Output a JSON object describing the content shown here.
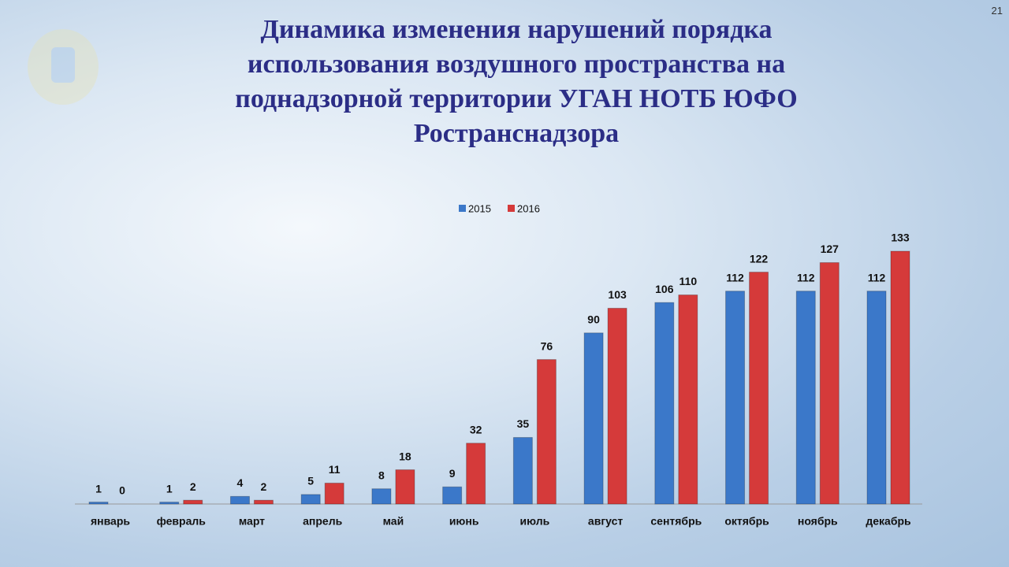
{
  "slide_number": "21",
  "chart_data": {
    "type": "bar",
    "title": "Динамика изменения нарушений порядка использования воздушного пространства на поднадзорной территории УГАН НОТБ ЮФО Ространснадзора",
    "categories": [
      "январь",
      "февраль",
      "март",
      "апрель",
      "май",
      "июнь",
      "июль",
      "август",
      "сентябрь",
      "октябрь",
      "ноябрь",
      "декабрь"
    ],
    "series": [
      {
        "name": "2015",
        "color": "#3b78c9",
        "values": [
          1,
          1,
          4,
          5,
          8,
          9,
          35,
          90,
          106,
          112,
          112,
          112
        ]
      },
      {
        "name": "2016",
        "color": "#d53a3a",
        "values": [
          0,
          2,
          2,
          11,
          18,
          32,
          76,
          103,
          110,
          122,
          127,
          133
        ]
      }
    ]
  }
}
